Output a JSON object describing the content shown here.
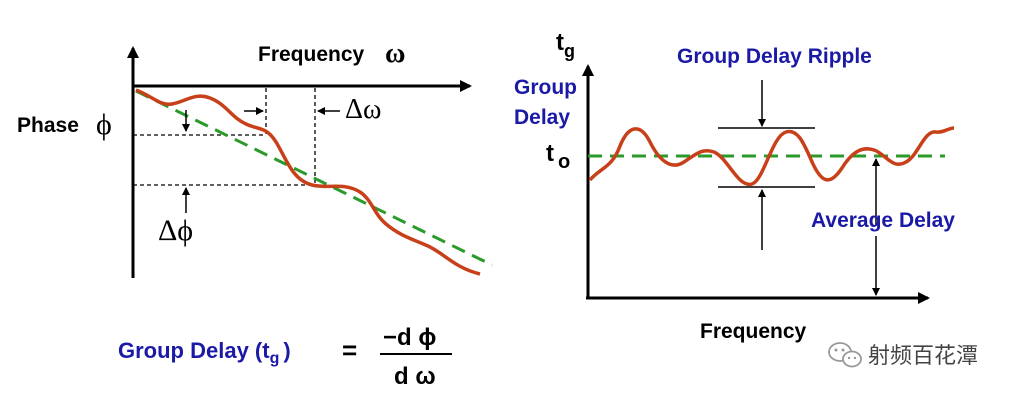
{
  "left_panel": {
    "x_axis_label": "Frequency",
    "x_axis_symbol": "ω",
    "y_axis_label": "Phase",
    "y_axis_symbol": "ϕ",
    "delta_omega": "Δω",
    "delta_phi": "Δϕ"
  },
  "right_panel": {
    "y_axis_symbol": "t",
    "y_axis_sub": "g",
    "y_axis_label_line1": "Group",
    "y_axis_label_line2": "Delay",
    "baseline_symbol": "t",
    "baseline_sub": "o",
    "ripple_label": "Group Delay Ripple",
    "average_label": "Average Delay",
    "x_axis_label": "Frequency"
  },
  "formula": {
    "label": "Group Delay (t",
    "label_sub": "g",
    "label_close": ")",
    "equals": "=",
    "numerator": "−d ϕ",
    "denominator": "d ω"
  },
  "watermark": {
    "text": "射频百花潭",
    "logo": "wechat-logo"
  },
  "colors": {
    "curve": "#c8401a",
    "dashed_trend": "#2a9a2a",
    "blue_text": "#1a1aa6",
    "axis": "#000000"
  }
}
